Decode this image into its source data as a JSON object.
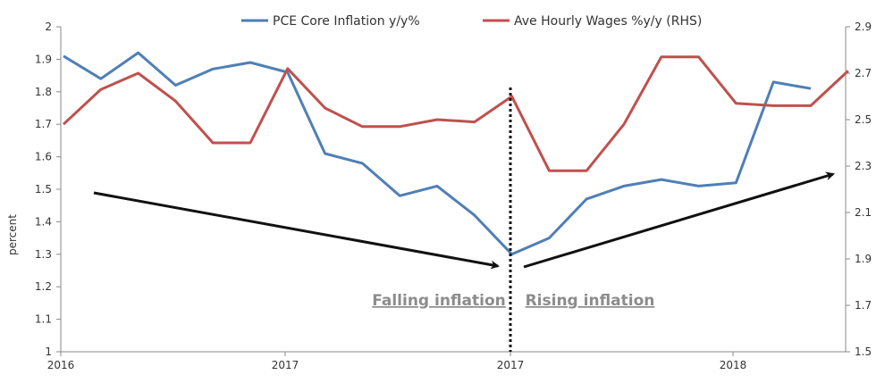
{
  "chart_data": {
    "type": "line",
    "title": "",
    "xlabel": "",
    "ylabel": "percent",
    "y2label": "",
    "ylim": [
      1,
      2
    ],
    "y2lim": [
      1.5,
      2.9
    ],
    "y_ticks": [
      1,
      1.1,
      1.2,
      1.3,
      1.4,
      1.5,
      1.6,
      1.7,
      1.8,
      1.9,
      2
    ],
    "y2_ticks": [
      1.5,
      1.7,
      1.9,
      2.1,
      2.3,
      2.5,
      2.7,
      2.9
    ],
    "x_ticks": [
      "2016",
      "2017",
      "2017",
      "2018"
    ],
    "grid": false,
    "legend_position": "top",
    "series": [
      {
        "name": "PCE Core Inflation y/y%",
        "axis": "left",
        "color": "#4f7fb6",
        "values": [
          1.91,
          1.84,
          1.92,
          1.82,
          1.87,
          1.89,
          1.86,
          1.61,
          1.58,
          1.48,
          1.51,
          1.42,
          1.3,
          1.35,
          1.47,
          1.51,
          1.53,
          1.51,
          1.52,
          1.83,
          1.81
        ]
      },
      {
        "name": "Ave Hourly Wages %y/y (RHS)",
        "axis": "right",
        "color": "#c0504d",
        "values": [
          2.48,
          2.63,
          2.7,
          2.58,
          2.4,
          2.4,
          2.72,
          2.55,
          2.47,
          2.47,
          2.5,
          2.49,
          2.6,
          2.28,
          2.28,
          2.48,
          2.77,
          2.77,
          2.57,
          2.56,
          2.56,
          2.71
        ]
      }
    ],
    "annotations": {
      "falling_label": "Falling inflation",
      "rising_label": "Rising inflation"
    }
  }
}
